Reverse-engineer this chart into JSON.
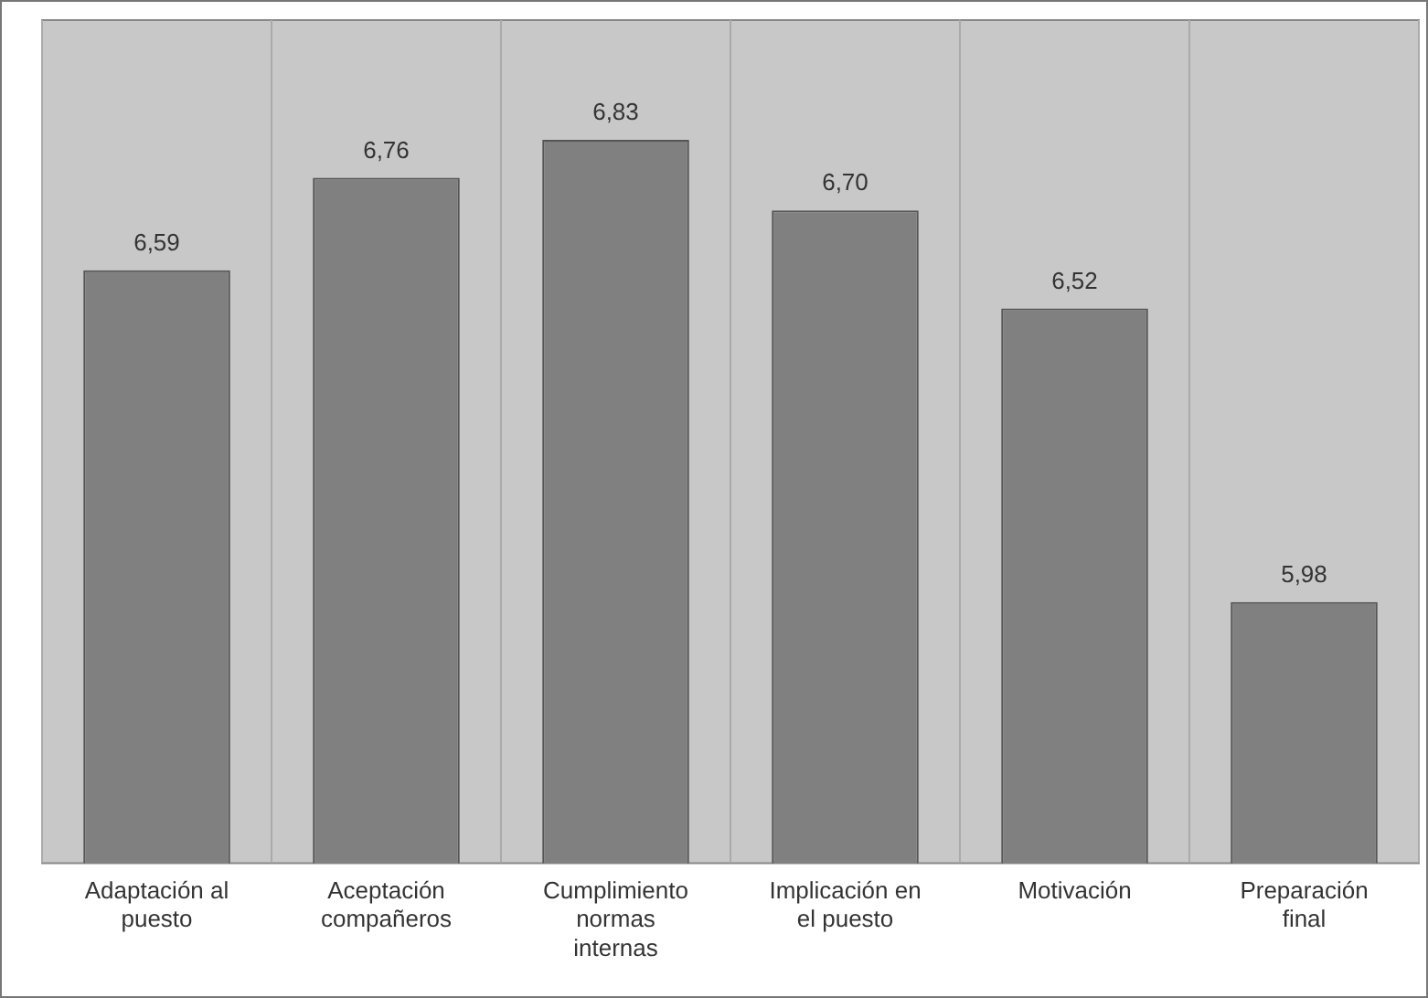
{
  "chart_data": {
    "type": "bar",
    "categories": [
      "Adaptación al puesto",
      "Aceptación compañeros",
      "Cumplimiento normas internas",
      "Implicación en el puesto",
      "Motivación",
      "Preparación final"
    ],
    "values": [
      6.59,
      6.76,
      6.83,
      6.7,
      6.52,
      5.98
    ],
    "color": "#808080",
    "ylim": [
      5.5,
      7.05
    ],
    "tick_labels": "x",
    "grid": "x",
    "value_labels": [
      "6,59",
      "6,76",
      "6,83",
      "6,70",
      "6,52",
      "5,98"
    ]
  }
}
